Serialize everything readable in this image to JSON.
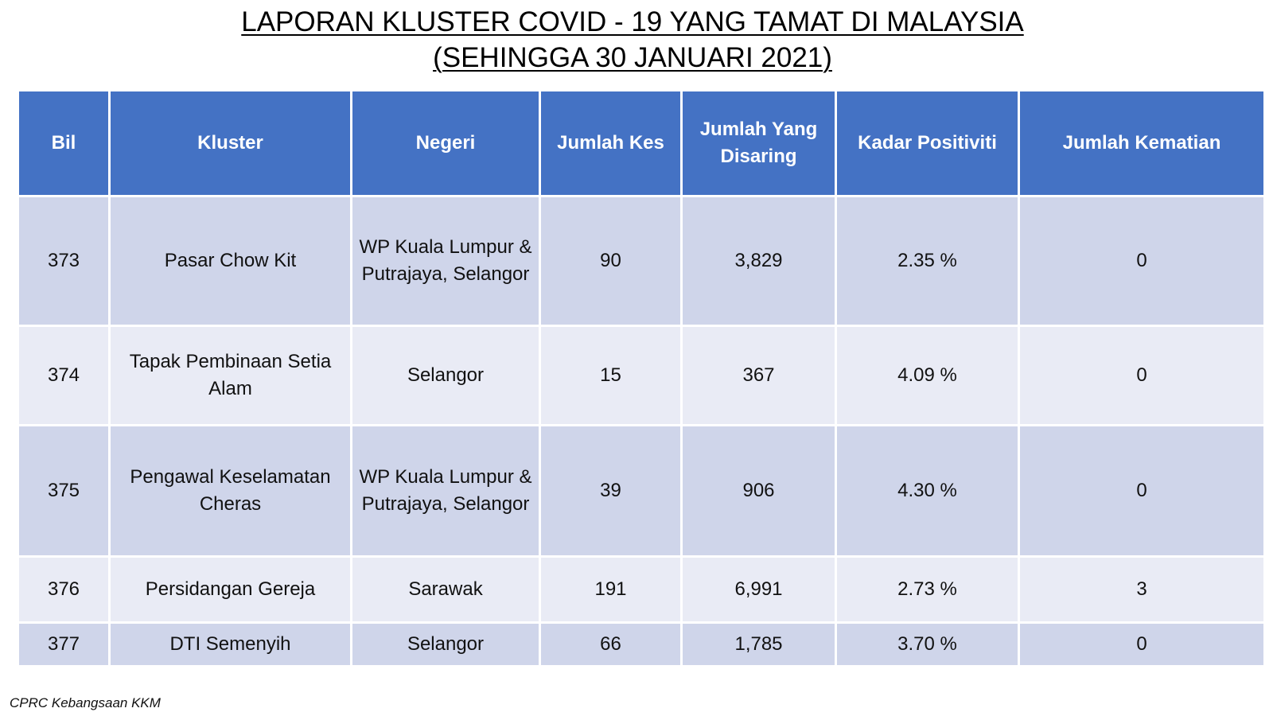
{
  "title": {
    "line1": "LAPORAN KLUSTER COVID - 19 YANG TAMAT DI MALAYSIA",
    "line2": "(SEHINGGA 30 JANUARI 2021)"
  },
  "table": {
    "headers": {
      "bil": "Bil",
      "kluster": "Kluster",
      "negeri": "Negeri",
      "jumlah_kes": "Jumlah Kes",
      "jumlah_disaring": "Jumlah Yang Disaring",
      "kadar_positiviti": "Kadar Positiviti",
      "jumlah_kematian": "Jumlah Kematian"
    },
    "rows": [
      {
        "bil": "373",
        "kluster": "Pasar Chow Kit",
        "negeri": "WP Kuala Lumpur & Putrajaya, Selangor",
        "jumlah_kes": "90",
        "jumlah_disaring": "3,829",
        "kadar_positiviti": "2.35 %",
        "jumlah_kematian": "0"
      },
      {
        "bil": "374",
        "kluster": "Tapak Pembinaan Setia Alam",
        "negeri": "Selangor",
        "jumlah_kes": "15",
        "jumlah_disaring": "367",
        "kadar_positiviti": "4.09 %",
        "jumlah_kematian": "0"
      },
      {
        "bil": "375",
        "kluster": "Pengawal Keselamatan Cheras",
        "negeri": "WP Kuala Lumpur & Putrajaya, Selangor",
        "jumlah_kes": "39",
        "jumlah_disaring": "906",
        "kadar_positiviti": "4.30 %",
        "jumlah_kematian": "0"
      },
      {
        "bil": "376",
        "kluster": "Persidangan Gereja",
        "negeri": "Sarawak",
        "jumlah_kes": "191",
        "jumlah_disaring": "6,991",
        "kadar_positiviti": "2.73 %",
        "jumlah_kematian": "3"
      },
      {
        "bil": "377",
        "kluster": "DTI Semenyih",
        "negeri": "Selangor",
        "jumlah_kes": "66",
        "jumlah_disaring": "1,785",
        "kadar_positiviti": "3.70 %",
        "jumlah_kematian": "0"
      }
    ]
  },
  "source": "CPRC Kebangsaan KKM",
  "colors": {
    "header_bg": "#4472c4",
    "row_dark": "#cfd5ea",
    "row_light": "#e9ebf5"
  }
}
